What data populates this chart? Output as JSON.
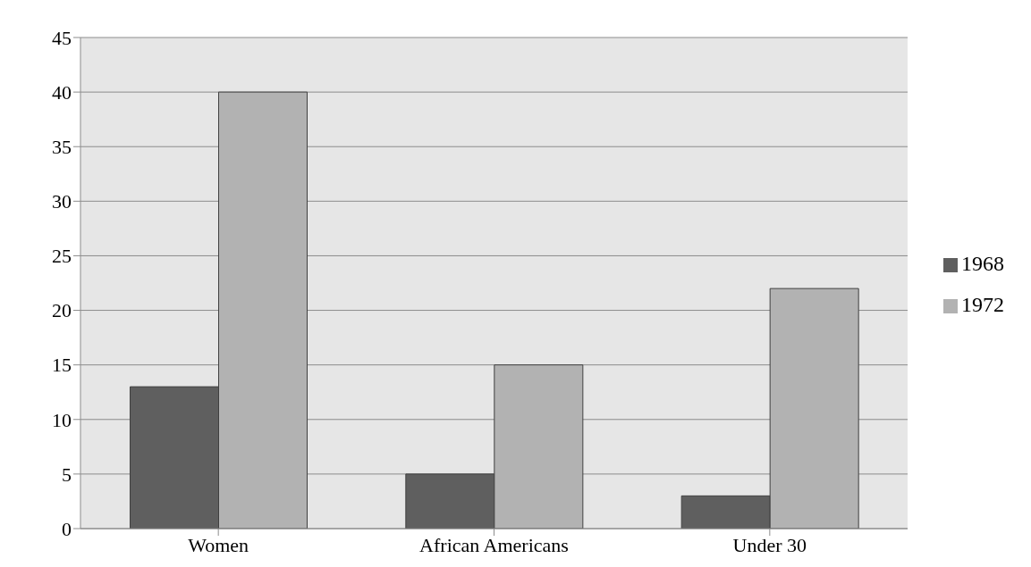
{
  "chart_data": {
    "type": "bar",
    "categories": [
      "Women",
      "African Americans",
      "Under 30"
    ],
    "series": [
      {
        "name": "1968",
        "color": "#5f5f5f",
        "values": [
          13,
          5,
          3
        ]
      },
      {
        "name": "1972",
        "color": "#b2b2b2",
        "values": [
          40,
          15,
          22
        ]
      }
    ],
    "ylim": [
      0,
      45
    ],
    "yticks": [
      0,
      5,
      10,
      15,
      20,
      25,
      30,
      35,
      40,
      45
    ],
    "grid": "y",
    "legend": "right"
  }
}
